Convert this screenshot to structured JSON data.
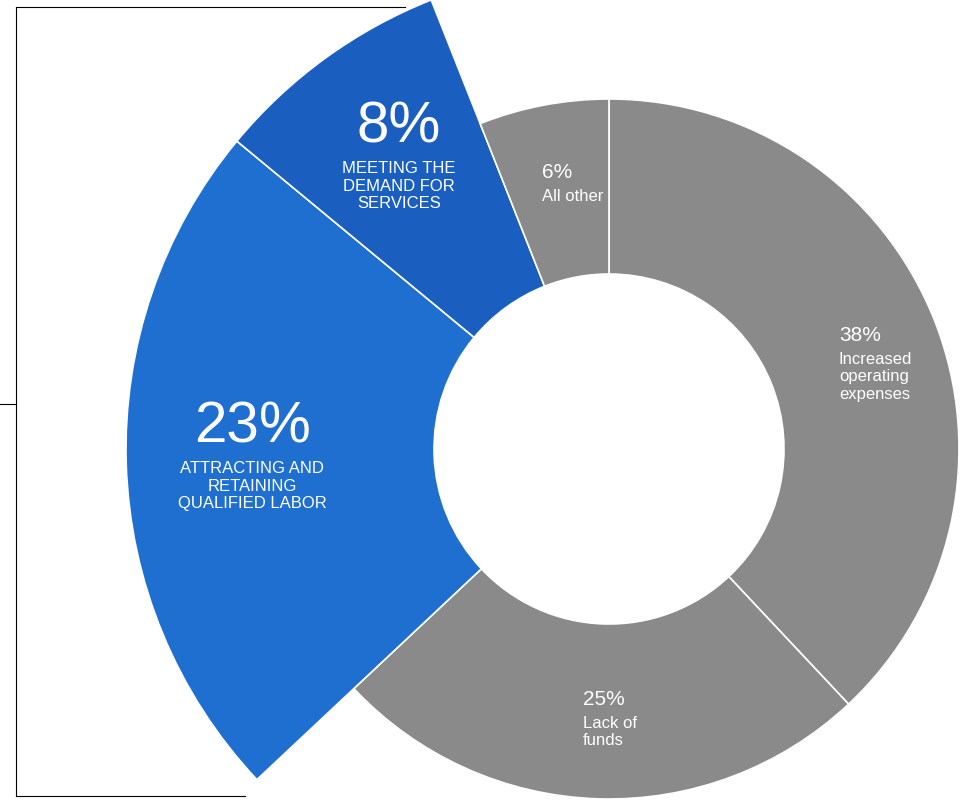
{
  "chart_data": {
    "type": "pie",
    "categories": [
      "Increased operating expenses",
      "Lack of funds",
      "ATTRACTING AND RETAINING QUALIFIED LABOR",
      "MEETING THE DEMAND FOR SERVICES",
      "All other"
    ],
    "values": [
      38,
      25,
      23,
      8,
      6
    ],
    "value_labels": [
      "38%",
      "25%",
      "23%",
      "8%",
      "6%"
    ],
    "colors": [
      "#8a8a8a",
      "#8a8a8a",
      "#1f6fd0",
      "#1a5fc0",
      "#8a8a8a"
    ],
    "data_labels": true
  }
}
